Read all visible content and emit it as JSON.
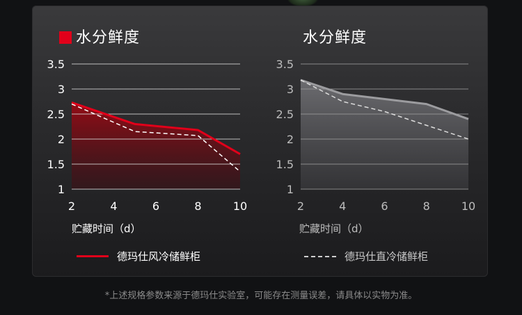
{
  "colors": {
    "brand_red": "#e1001a",
    "gray_line": "#a0a0a0",
    "dash_line": "#ffffff"
  },
  "footnote": "*上述规格参数来源于德玛仕实验室，可能存在测量误差，请具体以实物为准。",
  "chart_data": [
    {
      "type": "area",
      "title": "水分鲜度",
      "xlabel": "贮藏时间（d）",
      "ylabel": "",
      "xlim": [
        2,
        10
      ],
      "ylim": [
        1,
        3.5
      ],
      "x_ticks": [
        "2",
        "4",
        "6",
        "8",
        "10"
      ],
      "y_ticks": [
        "3.5",
        "3",
        "2.5",
        "2",
        "1.5",
        "1"
      ],
      "grid": true,
      "legend_placement": "bottom",
      "series": [
        {
          "name": "德玛仕风冷储鲜柜",
          "x": [
            2,
            5,
            8,
            10
          ],
          "values": [
            2.73,
            2.3,
            2.18,
            1.7
          ]
        },
        {
          "x": [
            2,
            5,
            8,
            10
          ],
          "values": [
            2.7,
            2.15,
            2.07,
            1.35
          ]
        }
      ]
    },
    {
      "type": "area",
      "title": "水分鲜度",
      "xlabel": "贮藏时间（d）",
      "ylabel": "",
      "xlim": [
        2,
        10
      ],
      "ylim": [
        1,
        3.5
      ],
      "x_ticks": [
        "2",
        "4",
        "6",
        "8",
        "10"
      ],
      "y_ticks": [
        "3.5",
        "3",
        "2.5",
        "2",
        "1.5",
        "1"
      ],
      "grid": true,
      "legend_placement": "bottom",
      "series": [
        {
          "x": [
            2,
            4,
            8,
            10
          ],
          "values": [
            3.18,
            2.9,
            2.7,
            2.4
          ]
        },
        {
          "name": "德玛仕直冷储鲜柜",
          "x": [
            2,
            4,
            6,
            10
          ],
          "values": [
            3.18,
            2.75,
            2.55,
            2.0
          ]
        }
      ]
    }
  ]
}
